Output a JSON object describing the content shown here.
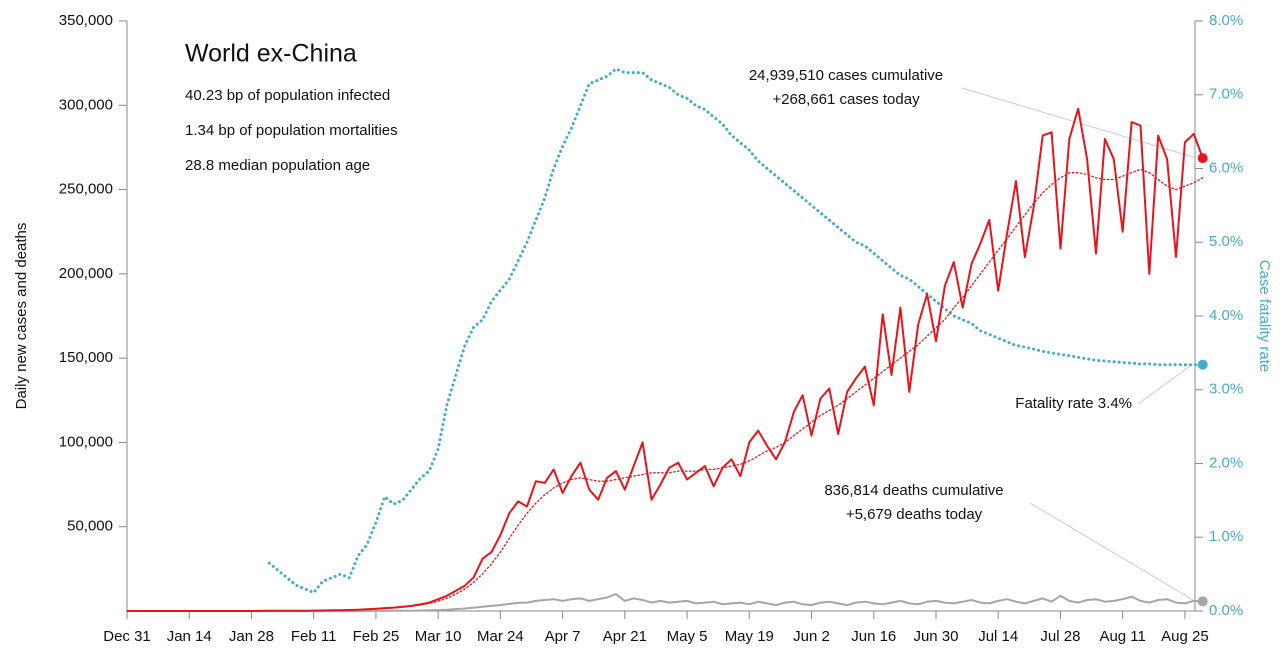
{
  "chart_data": {
    "type": "line",
    "title": "World ex-China",
    "info": [
      "40.23 bp of population infected",
      "1.34 bp of population mortalities",
      "28.8 median population age"
    ],
    "ylabel": "Daily new cases and deaths",
    "y2label": "Case fatality rate",
    "annotations": {
      "cases": [
        "24,939,510 cases cumulative",
        "+268,661 cases today"
      ],
      "deaths": [
        "836,814 deaths cumulative",
        "+5,679 deaths today"
      ],
      "fatality": "Fatality rate 3.4%"
    },
    "categories": [
      "Dec 31",
      null,
      null,
      null,
      null,
      null,
      null,
      "Jan 14",
      null,
      null,
      null,
      null,
      null,
      null,
      "Jan 28",
      null,
      null,
      null,
      null,
      null,
      null,
      "Feb 11",
      null,
      null,
      null,
      null,
      null,
      null,
      "Feb 25",
      null,
      null,
      null,
      null,
      null,
      null,
      "Mar 10",
      null,
      null,
      null,
      null,
      null,
      null,
      "Mar 24",
      null,
      null,
      null,
      null,
      null,
      null,
      "Apr 7",
      null,
      null,
      null,
      null,
      null,
      null,
      "Apr 21",
      null,
      null,
      null,
      null,
      null,
      null,
      "May 5",
      null,
      null,
      null,
      null,
      null,
      null,
      "May 19",
      null,
      null,
      null,
      null,
      null,
      null,
      "Jun 2",
      null,
      null,
      null,
      null,
      null,
      null,
      "Jun 16",
      null,
      null,
      null,
      null,
      null,
      null,
      "Jun 30",
      null,
      null,
      null,
      null,
      null,
      null,
      "Jul 14",
      null,
      null,
      null,
      null,
      null,
      null,
      "Jul 28",
      null,
      null,
      null,
      null,
      null,
      null,
      "Aug 11",
      null,
      null,
      null,
      null,
      null,
      null,
      "Aug 25",
      null,
      null
    ],
    "series": [
      {
        "color": "#e8141b",
        "style": "solid",
        "width": 2,
        "endpoint": true,
        "values": [
          0,
          0,
          0,
          0,
          0,
          0,
          0,
          0,
          0,
          0,
          0,
          0,
          0,
          0,
          0,
          50,
          100,
          100,
          150,
          150,
          200,
          250,
          300,
          400,
          500,
          600,
          800,
          1000,
          1300,
          1700,
          2000,
          2500,
          3000,
          4000,
          5000,
          7000,
          9000,
          12000,
          15000,
          20000,
          31000,
          35000,
          45000,
          58000,
          65000,
          62000,
          77000,
          76000,
          84000,
          70000,
          80000,
          88000,
          72000,
          66000,
          79000,
          83000,
          72000,
          86000,
          100000,
          66000,
          75000,
          85000,
          88000,
          78000,
          82000,
          86000,
          74000,
          85000,
          90000,
          80000,
          100000,
          107000,
          98000,
          90000,
          100000,
          118000,
          128000,
          104000,
          126000,
          132000,
          105000,
          130000,
          138000,
          145000,
          122000,
          176000,
          140000,
          180000,
          130000,
          170000,
          188000,
          160000,
          193000,
          207000,
          180000,
          206000,
          218000,
          232000,
          190000,
          224000,
          255000,
          210000,
          240000,
          282000,
          284000,
          215000,
          280000,
          298000,
          268000,
          212000,
          280000,
          268000,
          225000,
          290000,
          288000,
          200000,
          282000,
          268000,
          210000,
          278000,
          283000,
          268661
        ]
      },
      {
        "color": "#e8141b",
        "style": "dotted",
        "width": 1.3,
        "endpoint": false,
        "values": [
          0,
          0,
          0,
          0,
          0,
          0,
          0,
          0,
          0,
          0,
          0,
          0,
          0,
          0,
          0,
          30,
          60,
          90,
          120,
          150,
          200,
          250,
          300,
          380,
          470,
          570,
          700,
          900,
          1150,
          1450,
          1800,
          2200,
          2800,
          3500,
          4500,
          5800,
          7500,
          10000,
          13000,
          17000,
          22000,
          28000,
          35000,
          43000,
          51000,
          58000,
          64000,
          69000,
          73000,
          76000,
          78000,
          79000,
          78000,
          77000,
          77000,
          78000,
          79000,
          80000,
          81000,
          82000,
          82000,
          82000,
          83000,
          83000,
          83000,
          84000,
          84000,
          85000,
          86000,
          87000,
          89000,
          92000,
          95000,
          97000,
          100000,
          104000,
          108000,
          112000,
          116000,
          119000,
          122000,
          126000,
          130000,
          134000,
          138000,
          142000,
          146000,
          150000,
          154000,
          158000,
          163000,
          168000,
          173000,
          180000,
          186000,
          193000,
          200000,
          207000,
          214000,
          221000,
          228000,
          235000,
          242000,
          248000,
          253000,
          257000,
          260000,
          260000,
          259000,
          257000,
          256000,
          256000,
          258000,
          260000,
          262000,
          260000,
          256000,
          252000,
          250000,
          252000,
          254000,
          257000
        ]
      },
      {
        "color": "#a6a6a6",
        "style": "solid",
        "width": 2,
        "endpoint": true,
        "values": [
          0,
          0,
          0,
          0,
          0,
          0,
          0,
          0,
          0,
          0,
          0,
          0,
          0,
          0,
          0,
          0,
          0,
          0,
          0,
          0,
          0,
          0,
          0,
          0,
          0,
          10,
          20,
          40,
          60,
          80,
          100,
          150,
          200,
          300,
          400,
          600,
          800,
          1100,
          1500,
          2000,
          2500,
          3000,
          3500,
          4200,
          4800,
          5000,
          6000,
          6500,
          7000,
          6000,
          7000,
          7500,
          6000,
          7000,
          8000,
          10000,
          6000,
          7500,
          6500,
          5000,
          6000,
          5000,
          5500,
          6000,
          4500,
          5000,
          5500,
          4000,
          4500,
          5000,
          4000,
          5500,
          4500,
          3500,
          5000,
          5500,
          4000,
          3500,
          5000,
          5500,
          4500,
          3500,
          5000,
          5500,
          4500,
          4000,
          5000,
          6000,
          4500,
          4000,
          5500,
          6000,
          5000,
          4500,
          5500,
          6500,
          5000,
          4500,
          6000,
          7000,
          5500,
          4500,
          6000,
          7500,
          5500,
          9000,
          6000,
          5000,
          6500,
          7000,
          5500,
          6000,
          7000,
          8500,
          6000,
          5000,
          6500,
          7000,
          5000,
          4500,
          6000,
          5679
        ]
      },
      {
        "color": "#46acc8",
        "style": "dotted",
        "width": 3,
        "endpoint": true,
        "axis": "y2",
        "values": [
          null,
          null,
          null,
          null,
          null,
          null,
          null,
          null,
          null,
          null,
          null,
          null,
          null,
          null,
          null,
          null,
          0.65,
          0.55,
          0.45,
          0.35,
          0.3,
          0.25,
          0.4,
          0.45,
          0.5,
          0.45,
          0.75,
          0.9,
          1.2,
          1.55,
          1.45,
          1.5,
          1.65,
          1.8,
          1.9,
          2.2,
          2.8,
          3.2,
          3.6,
          3.85,
          3.95,
          4.2,
          4.35,
          4.5,
          4.75,
          5.0,
          5.3,
          5.6,
          6.0,
          6.3,
          6.55,
          6.85,
          7.15,
          7.2,
          7.25,
          7.35,
          7.3,
          7.3,
          7.3,
          7.2,
          7.15,
          7.1,
          7.0,
          6.95,
          6.85,
          6.8,
          6.7,
          6.6,
          6.45,
          6.35,
          6.25,
          6.1,
          6.0,
          5.9,
          5.8,
          5.7,
          5.6,
          5.5,
          5.4,
          5.3,
          5.2,
          5.1,
          5.0,
          4.95,
          4.85,
          4.75,
          4.65,
          4.55,
          4.5,
          4.4,
          4.3,
          4.2,
          4.1,
          4.0,
          3.95,
          3.9,
          3.8,
          3.75,
          3.7,
          3.65,
          3.6,
          3.58,
          3.55,
          3.52,
          3.5,
          3.48,
          3.46,
          3.44,
          3.42,
          3.4,
          3.39,
          3.38,
          3.37,
          3.36,
          3.35,
          3.35,
          3.34,
          3.34,
          3.34,
          3.34,
          3.34,
          3.34
        ]
      }
    ],
    "ylim": [
      0,
      350000
    ],
    "yticks": [
      {
        "value": 50000,
        "label": "50,000"
      },
      {
        "value": 100000,
        "label": "100,000"
      },
      {
        "value": 150000,
        "label": "150,000"
      },
      {
        "value": 200000,
        "label": "200,000"
      },
      {
        "value": 250000,
        "label": "250,000"
      },
      {
        "value": 300000,
        "label": "300,000"
      },
      {
        "value": 350000,
        "label": "350,000"
      }
    ],
    "y2lim": [
      0,
      8
    ],
    "y2ticks": [
      {
        "value": 0,
        "label": "0.0%"
      },
      {
        "value": 1,
        "label": "1.0%"
      },
      {
        "value": 2,
        "label": "2.0%"
      },
      {
        "value": 3,
        "label": "3.0%"
      },
      {
        "value": 4,
        "label": "4.0%"
      },
      {
        "value": 5,
        "label": "5.0%"
      },
      {
        "value": 6,
        "label": "6.0%"
      },
      {
        "value": 7,
        "label": "7.0%"
      },
      {
        "value": 8,
        "label": "8.0%"
      }
    ],
    "y2color": "#46acc8",
    "grid": false
  }
}
